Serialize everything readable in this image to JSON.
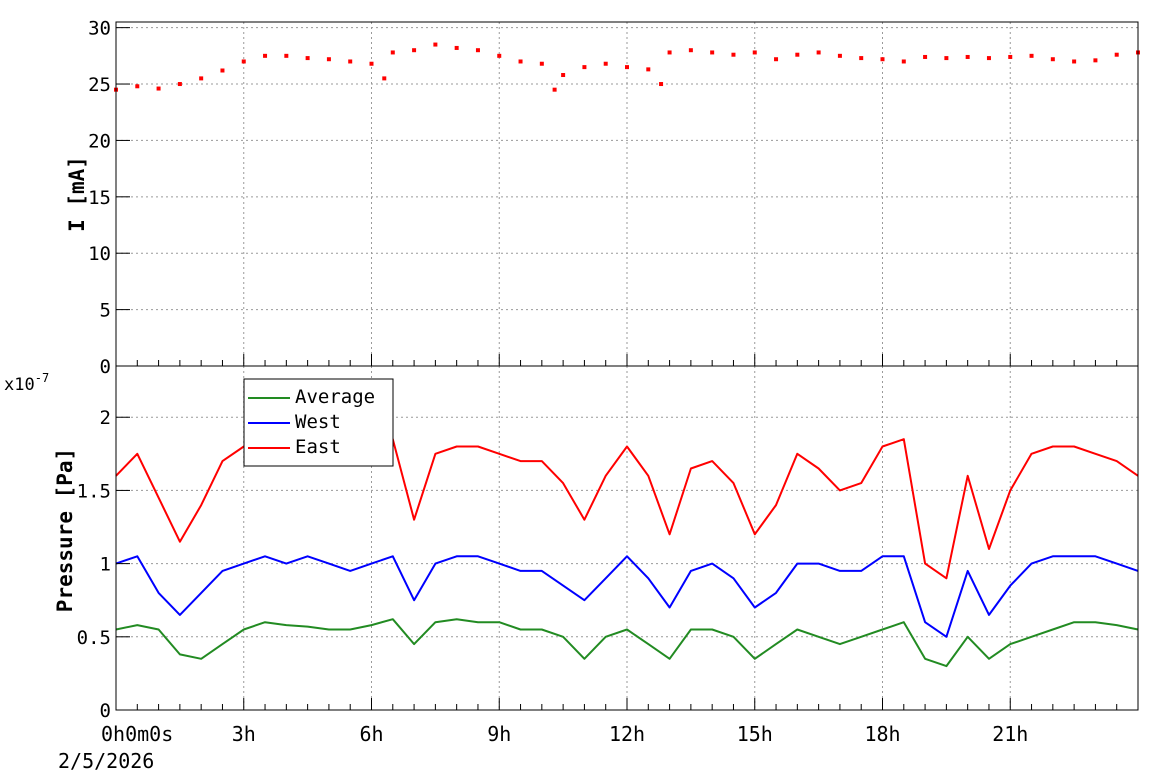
{
  "chart_data": [
    {
      "type": "scatter",
      "panel": "top",
      "ylabel": "I [mA]",
      "ylim": [
        0,
        30.5
      ],
      "y_ticks": [
        "0",
        "5",
        "10",
        "15",
        "20",
        "25",
        "30"
      ],
      "x_ticks": [
        "0h0m0s",
        "3h",
        "6h",
        "9h",
        "12h",
        "15h",
        "18h",
        "21h"
      ],
      "grid": true,
      "series": [
        {
          "color": "#ff0000",
          "x_hours": [
            0.0,
            0.5,
            1.0,
            1.5,
            2.0,
            2.5,
            3.0,
            3.5,
            4.0,
            4.5,
            5.0,
            5.5,
            6.0,
            6.3,
            6.5,
            7.0,
            7.5,
            8.0,
            8.5,
            9.0,
            9.5,
            10.0,
            10.3,
            10.5,
            11.0,
            11.5,
            12.0,
            12.5,
            12.8,
            13.0,
            13.5,
            14.0,
            14.5,
            15.0,
            15.5,
            16.0,
            16.5,
            17.0,
            17.5,
            18.0,
            18.5,
            19.0,
            19.5,
            20.0,
            20.5,
            21.0,
            21.5,
            22.0,
            22.5,
            23.0,
            23.5,
            24.0
          ],
          "values": [
            24.5,
            24.8,
            24.6,
            25.0,
            25.5,
            26.2,
            27.0,
            27.5,
            27.5,
            27.3,
            27.2,
            27.0,
            26.8,
            25.5,
            27.8,
            28.0,
            28.5,
            28.2,
            28.0,
            27.5,
            27.0,
            26.8,
            24.5,
            25.8,
            26.5,
            26.8,
            26.5,
            26.3,
            25.0,
            27.8,
            28.0,
            27.8,
            27.6,
            27.8,
            27.2,
            27.6,
            27.8,
            27.5,
            27.3,
            27.2,
            27.0,
            27.4,
            27.3,
            27.4,
            27.3,
            27.4,
            27.5,
            27.2,
            27.0,
            27.1,
            27.6,
            27.8
          ]
        }
      ]
    },
    {
      "type": "line",
      "panel": "bottom",
      "ylabel": "Pressure [Pa]",
      "y_exponent_label": "x10",
      "y_exponent_power": "-7",
      "ylim": [
        0,
        2.35
      ],
      "y_ticks": [
        "0",
        "0.5",
        "1",
        "1.5",
        "2"
      ],
      "x_ticks": [
        "0h0m0s",
        "3h",
        "6h",
        "9h",
        "12h",
        "15h",
        "18h",
        "21h"
      ],
      "x_date": "2/5/2026",
      "legend_position": "top-left",
      "grid": true,
      "x_hours": [
        0.0,
        0.5,
        1.0,
        1.5,
        2.0,
        2.5,
        3.0,
        3.5,
        4.0,
        4.5,
        5.0,
        5.5,
        6.0,
        6.5,
        7.0,
        7.5,
        8.0,
        8.5,
        9.0,
        9.5,
        10.0,
        10.5,
        11.0,
        11.5,
        12.0,
        12.5,
        13.0,
        13.5,
        14.0,
        14.5,
        15.0,
        15.5,
        16.0,
        16.5,
        17.0,
        17.5,
        18.0,
        18.5,
        19.0,
        19.5,
        20.0,
        20.5,
        21.0,
        21.5,
        22.0,
        22.5,
        23.0,
        23.5,
        24.0
      ],
      "series": [
        {
          "name": "Average",
          "color": "#228b22",
          "values": [
            0.55,
            0.58,
            0.55,
            0.38,
            0.35,
            0.45,
            0.55,
            0.6,
            0.58,
            0.57,
            0.55,
            0.55,
            0.58,
            0.62,
            0.45,
            0.6,
            0.62,
            0.6,
            0.6,
            0.55,
            0.55,
            0.5,
            0.35,
            0.5,
            0.55,
            0.45,
            0.35,
            0.55,
            0.55,
            0.5,
            0.35,
            0.45,
            0.55,
            0.5,
            0.45,
            0.5,
            0.55,
            0.6,
            0.35,
            0.3,
            0.5,
            0.35,
            0.45,
            0.5,
            0.55,
            0.6,
            0.6,
            0.58,
            0.55
          ]
        },
        {
          "name": "West",
          "color": "#0000ff",
          "values": [
            1.0,
            1.05,
            0.8,
            0.65,
            0.8,
            0.95,
            1.0,
            1.05,
            1.0,
            1.05,
            1.0,
            0.95,
            1.0,
            1.05,
            0.75,
            1.0,
            1.05,
            1.05,
            1.0,
            0.95,
            0.95,
            0.85,
            0.75,
            0.9,
            1.05,
            0.9,
            0.7,
            0.95,
            1.0,
            0.9,
            0.7,
            0.8,
            1.0,
            1.0,
            0.95,
            0.95,
            1.05,
            1.05,
            0.6,
            0.5,
            0.95,
            0.65,
            0.85,
            1.0,
            1.05,
            1.05,
            1.05,
            1.0,
            0.95
          ]
        },
        {
          "name": "East",
          "color": "#ff0000",
          "values": [
            1.6,
            1.75,
            1.45,
            1.15,
            1.4,
            1.7,
            1.8,
            1.75,
            1.7,
            1.75,
            1.7,
            1.75,
            1.8,
            1.85,
            1.3,
            1.75,
            1.8,
            1.8,
            1.75,
            1.7,
            1.7,
            1.55,
            1.3,
            1.6,
            1.8,
            1.6,
            1.2,
            1.65,
            1.7,
            1.55,
            1.2,
            1.4,
            1.75,
            1.65,
            1.5,
            1.55,
            1.8,
            1.85,
            1.0,
            0.9,
            1.6,
            1.1,
            1.5,
            1.75,
            1.8,
            1.8,
            1.75,
            1.7,
            1.6
          ]
        }
      ]
    }
  ]
}
